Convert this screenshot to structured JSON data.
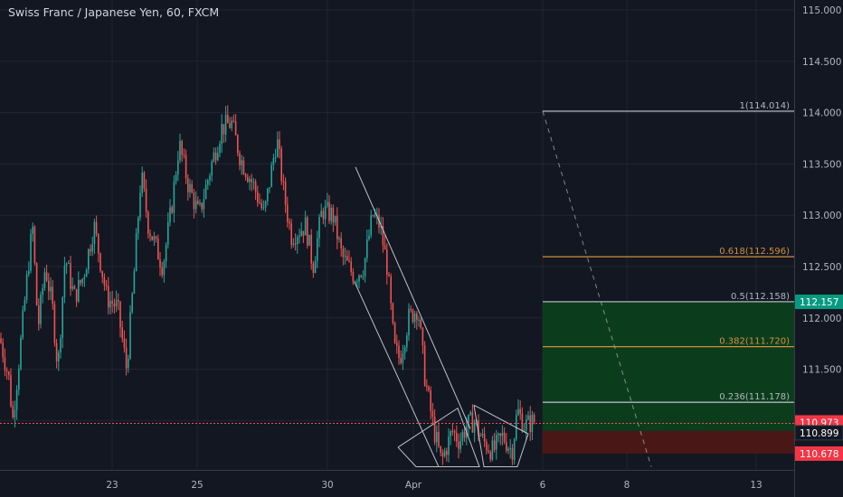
{
  "header": {
    "title": "Swiss Franc / Japanese Yen, 60, FXCM"
  },
  "colors": {
    "background": "#131722",
    "grid": "#232632",
    "axis_text": "#b2b5be",
    "bull": "#26a69a",
    "bear": "#ef5350",
    "pattern_lines": "#d1d4dc",
    "fib_gray": "#b2b5be",
    "fib_orange": "#d28f3c",
    "profit_zone": "#0b3d1d",
    "loss_zone": "#4a1717",
    "target_label": "#089981",
    "current_label": "#f23645",
    "stop_label": "#f23645"
  },
  "chart_data": {
    "type": "candlestick",
    "title": "Swiss Franc / Japanese Yen, 60, FXCM",
    "ylim": [
      110.55,
      115.1
    ],
    "y_ticks": [
      "115.000",
      "114.500",
      "114.000",
      "113.500",
      "113.000",
      "112.500",
      "112.000",
      "111.500",
      "111.000"
    ],
    "x_ticks": [
      "23",
      "25",
      "30",
      "Apr",
      "6",
      "8",
      "13"
    ],
    "grid": true,
    "price_path": [
      [
        0,
        111.8
      ],
      [
        10,
        111.4
      ],
      [
        14,
        111.0
      ],
      [
        20,
        111.5
      ],
      [
        30,
        112.4
      ],
      [
        36,
        112.9
      ],
      [
        42,
        111.9
      ],
      [
        50,
        112.5
      ],
      [
        58,
        112.1
      ],
      [
        64,
        111.5
      ],
      [
        72,
        112.6
      ],
      [
        82,
        112.2
      ],
      [
        92,
        112.4
      ],
      [
        104,
        112.9
      ],
      [
        118,
        112.2
      ],
      [
        130,
        112.1
      ],
      [
        140,
        111.5
      ],
      [
        148,
        112.4
      ],
      [
        156,
        113.4
      ],
      [
        164,
        112.9
      ],
      [
        172,
        112.7
      ],
      [
        180,
        112.5
      ],
      [
        190,
        113.1
      ],
      [
        198,
        113.7
      ],
      [
        208,
        113.3
      ],
      [
        220,
        113.0
      ],
      [
        234,
        113.5
      ],
      [
        245,
        113.85
      ],
      [
        256,
        113.9
      ],
      [
        266,
        113.55
      ],
      [
        280,
        113.3
      ],
      [
        292,
        113.0
      ],
      [
        306,
        113.75
      ],
      [
        314,
        113.2
      ],
      [
        322,
        112.8
      ],
      [
        338,
        112.9
      ],
      [
        346,
        112.5
      ],
      [
        356,
        113.05
      ],
      [
        368,
        113.0
      ],
      [
        378,
        112.6
      ],
      [
        392,
        112.4
      ],
      [
        402,
        112.5
      ],
      [
        412,
        113.0
      ],
      [
        420,
        112.9
      ],
      [
        428,
        112.5
      ],
      [
        436,
        111.7
      ],
      [
        442,
        111.6
      ],
      [
        452,
        112.0
      ],
      [
        462,
        112.1
      ],
      [
        470,
        111.4
      ],
      [
        480,
        110.9
      ],
      [
        488,
        110.6
      ],
      [
        500,
        110.9
      ],
      [
        508,
        110.8
      ],
      [
        516,
        110.95
      ],
      [
        524,
        111.0
      ],
      [
        534,
        110.8
      ],
      [
        545,
        110.7
      ],
      [
        556,
        110.85
      ],
      [
        566,
        110.7
      ],
      [
        572,
        111.1
      ],
      [
        580,
        110.95
      ],
      [
        592,
        111.0
      ]
    ],
    "fibonacci": [
      {
        "level": "1",
        "label": "1(114.014)",
        "price": 114.014,
        "color": "gray"
      },
      {
        "level": "0.618",
        "label": "0.618(112.596)",
        "price": 112.596,
        "color": "orange"
      },
      {
        "level": "0.5",
        "label": "0.5(112.158)",
        "price": 112.158,
        "color": "gray"
      },
      {
        "level": "0.382",
        "label": "0.382(111.720)",
        "price": 111.72,
        "color": "orange"
      },
      {
        "level": "0.236",
        "label": "0.236(111.178)",
        "price": 111.178,
        "color": "gray"
      }
    ],
    "position": {
      "entry": 110.899,
      "target": 112.157,
      "stop": 110.678,
      "current": 110.973
    },
    "price_labels": [
      {
        "text": "112.157",
        "price": 112.157,
        "kind": "target"
      },
      {
        "text": "110.973",
        "price": 110.973,
        "kind": "current"
      },
      {
        "text": "110.899",
        "price": 110.899,
        "kind": "entry"
      },
      {
        "text": "110.678",
        "price": 110.678,
        "kind": "stop"
      }
    ]
  }
}
